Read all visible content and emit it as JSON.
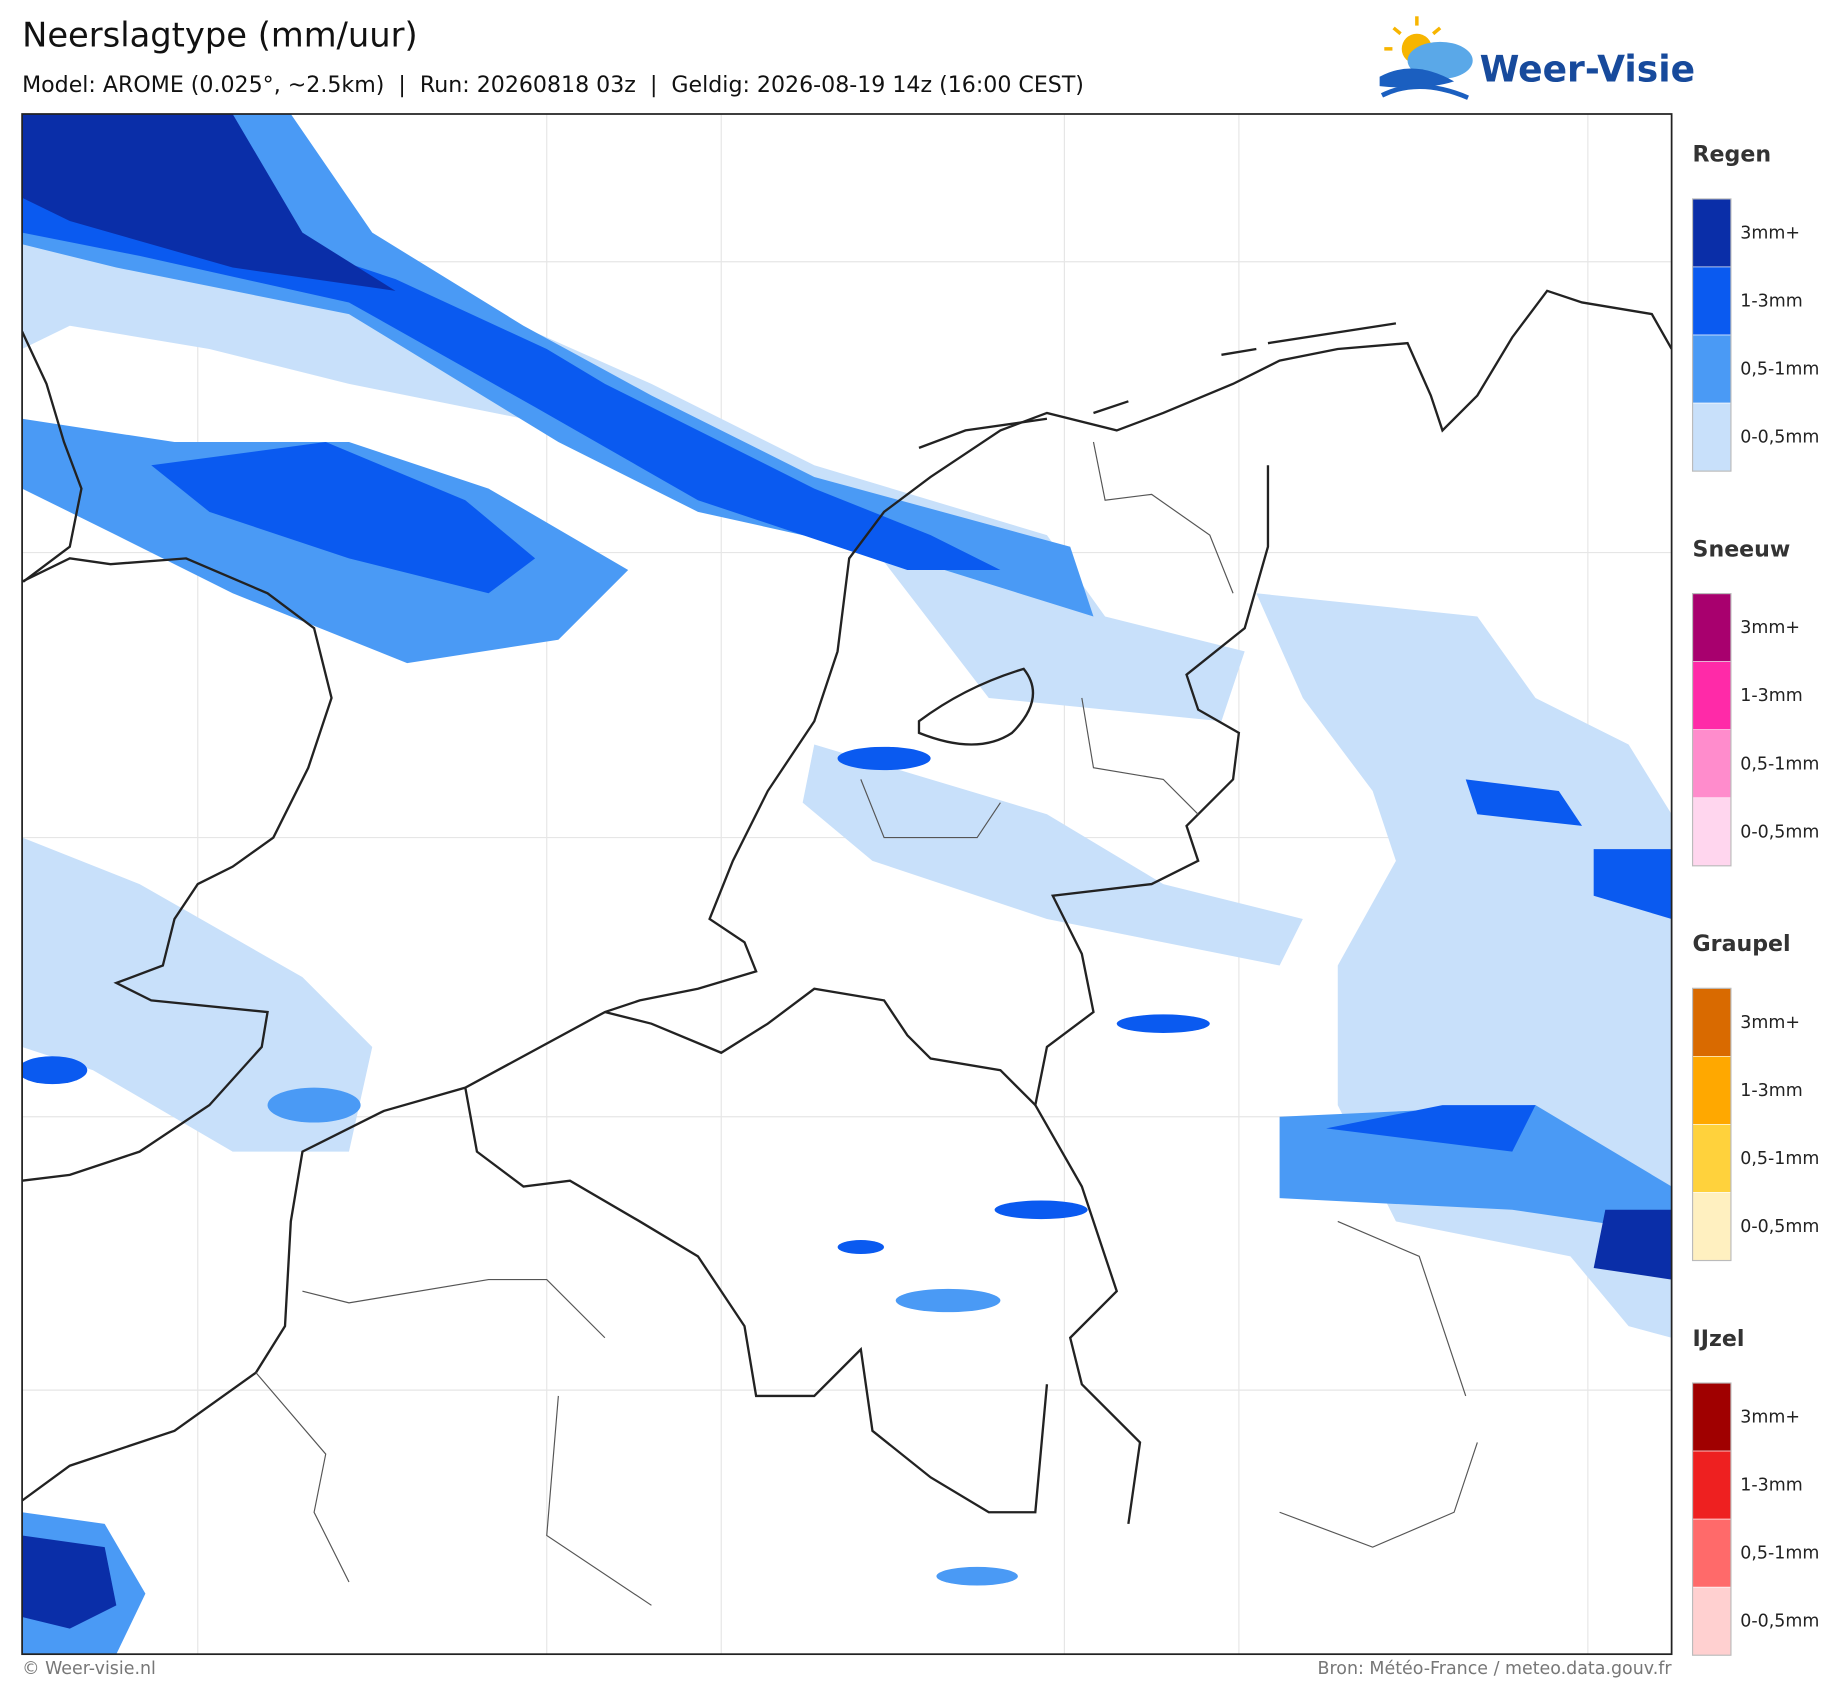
{
  "header": {
    "title": "Neerslagtype (mm/uur)",
    "subtitle": "Model: AROME (0.025°, ~2.5km)  |  Run: 20260818 03z  |  Geldig: 2026-08-19 14z (16:00 CEST)"
  },
  "logo": {
    "text": "Weer-Visie"
  },
  "legend": {
    "sections": [
      {
        "title": "Regen",
        "items": [
          {
            "label": "3mm+",
            "color": "#0a2ea8"
          },
          {
            "label": "1-3mm",
            "color": "#0a5af0"
          },
          {
            "label": "0,5-1mm",
            "color": "#4a9af5"
          },
          {
            "label": "0-0,5mm",
            "color": "#c8e0fa"
          }
        ]
      },
      {
        "title": "Sneeuw",
        "items": [
          {
            "label": "3mm+",
            "color": "#a8006e"
          },
          {
            "label": "1-3mm",
            "color": "#ff2aa8"
          },
          {
            "label": "0,5-1mm",
            "color": "#ff8ccc"
          },
          {
            "label": "0-0,5mm",
            "color": "#ffd6ee"
          }
        ]
      },
      {
        "title": "Graupel",
        "items": [
          {
            "label": "3mm+",
            "color": "#d96a00"
          },
          {
            "label": "1-3mm",
            "color": "#ffa800"
          },
          {
            "label": "0,5-1mm",
            "color": "#ffd23c"
          },
          {
            "label": "0-0,5mm",
            "color": "#fff0c0"
          }
        ]
      },
      {
        "title": "IJzel",
        "items": [
          {
            "label": "3mm+",
            "color": "#a00000"
          },
          {
            "label": "1-3mm",
            "color": "#ee2020"
          },
          {
            "label": "0,5-1mm",
            "color": "#ff6a6a"
          },
          {
            "label": "0-0,5mm",
            "color": "#ffd0d0"
          }
        ]
      }
    ]
  },
  "footer": {
    "left": "© Weer-visie.nl",
    "right": "Bron: Météo-France / meteo.data.gouv.fr"
  }
}
